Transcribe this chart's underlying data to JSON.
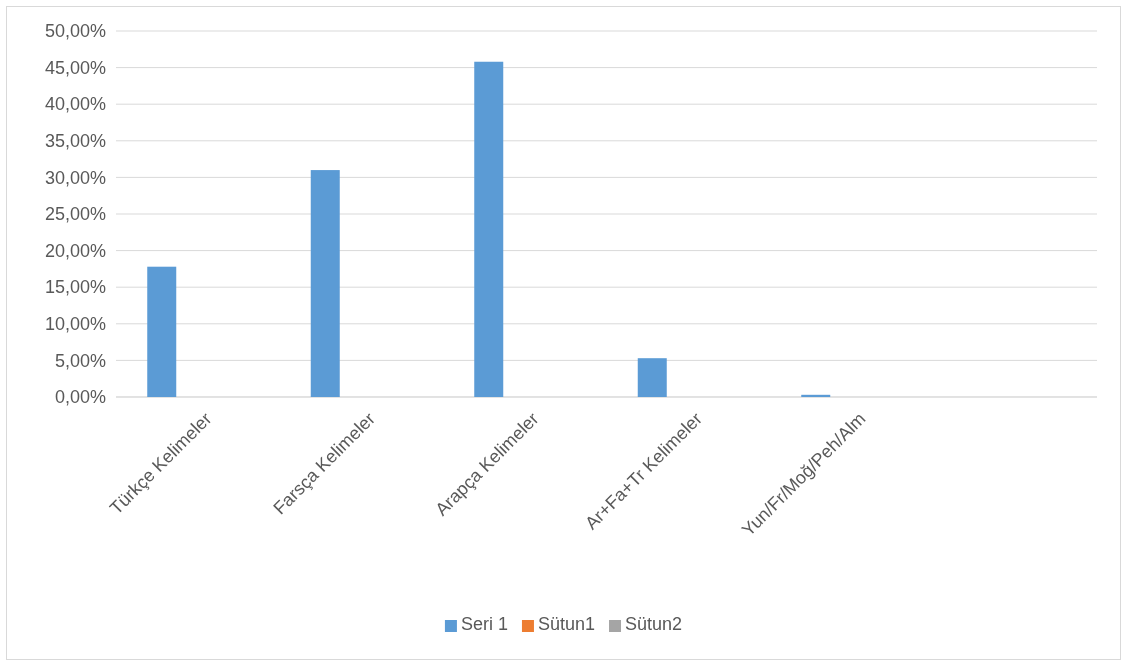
{
  "chart_data": {
    "type": "bar",
    "categories": [
      "Türkçe Kelimeler",
      "Farsça Kelimeler",
      "Arapça Kelimeler",
      "Ar+Fa+Tr Kelimeler",
      "Yun/Fr/Moğ/Peh/Alm",
      null
    ],
    "series": [
      {
        "name": "Seri 1",
        "color": "#5b9bd5",
        "values": [
          17.8,
          31.0,
          45.8,
          5.3,
          0.3,
          null
        ]
      },
      {
        "name": "Sütun1",
        "color": "#ed7d31",
        "values": [
          null,
          null,
          null,
          null,
          null,
          null
        ]
      },
      {
        "name": "Sütun2",
        "color": "#a5a5a5",
        "values": [
          null,
          null,
          null,
          null,
          null,
          null
        ]
      }
    ],
    "ylim": [
      0,
      50
    ],
    "yticks": [
      {
        "value": 0,
        "label": "0,00%"
      },
      {
        "value": 5,
        "label": "5,00%"
      },
      {
        "value": 10,
        "label": "10,00%"
      },
      {
        "value": 15,
        "label": "15,00%"
      },
      {
        "value": 20,
        "label": "20,00%"
      },
      {
        "value": 25,
        "label": "25,00%"
      },
      {
        "value": 30,
        "label": "30,00%"
      },
      {
        "value": 35,
        "label": "35,00%"
      },
      {
        "value": 40,
        "label": "40,00%"
      },
      {
        "value": 45,
        "label": "45,00%"
      },
      {
        "value": 50,
        "label": "50,00%"
      }
    ],
    "grid": "y",
    "legend": "bottom"
  }
}
